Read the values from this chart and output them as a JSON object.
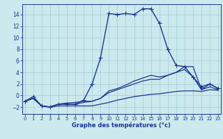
{
  "xlabel": "Graphe des températures (°c)",
  "x_ticks": [
    0,
    1,
    2,
    3,
    4,
    5,
    6,
    7,
    8,
    9,
    10,
    11,
    12,
    13,
    14,
    15,
    16,
    17,
    18,
    19,
    20,
    21,
    22,
    23
  ],
  "ylim": [
    -3.2,
    15.8
  ],
  "xlim": [
    -0.3,
    23.3
  ],
  "yticks": [
    -2,
    0,
    2,
    4,
    6,
    8,
    10,
    12,
    14
  ],
  "bg_color": "#cce9ed",
  "grid_color": "#9ecdd4",
  "line_color": "#1a3590",
  "lines": [
    {
      "x": [
        0,
        1,
        2,
        3,
        4,
        5,
        6,
        7,
        8,
        9,
        10,
        11,
        12,
        13,
        14,
        15,
        16,
        17,
        18,
        19,
        20,
        21,
        22,
        23
      ],
      "y": [
        -1.0,
        -0.5,
        -1.8,
        -2.0,
        -1.8,
        -1.8,
        -1.8,
        -1.8,
        -1.8,
        -1.5,
        -1.2,
        -0.8,
        -0.5,
        -0.2,
        0.0,
        0.2,
        0.3,
        0.5,
        0.7,
        0.8,
        0.8,
        0.7,
        1.0,
        0.9
      ],
      "marker": null,
      "lw": 0.9
    },
    {
      "x": [
        0,
        1,
        2,
        3,
        4,
        5,
        6,
        7,
        8,
        9,
        10,
        11,
        12,
        13,
        14,
        15,
        16,
        17,
        18,
        19,
        20,
        21,
        22,
        23
      ],
      "y": [
        -1.0,
        -0.5,
        -1.8,
        -2.0,
        -1.5,
        -1.5,
        -1.5,
        -1.2,
        -1.0,
        -0.5,
        0.5,
        1.0,
        1.5,
        2.0,
        2.5,
        2.8,
        2.8,
        3.5,
        4.0,
        4.5,
        3.2,
        1.0,
        1.5,
        1.0
      ],
      "marker": null,
      "lw": 0.9
    },
    {
      "x": [
        0,
        1,
        2,
        3,
        4,
        5,
        6,
        7,
        8,
        9,
        10,
        11,
        12,
        13,
        14,
        15,
        16,
        17,
        18,
        19,
        20,
        21,
        22,
        23
      ],
      "y": [
        -1.0,
        -0.5,
        -1.8,
        -2.0,
        -1.5,
        -1.3,
        -1.2,
        -1.0,
        -1.0,
        -0.5,
        0.8,
        1.2,
        1.8,
        2.5,
        3.0,
        3.5,
        3.2,
        3.5,
        4.0,
        5.0,
        5.0,
        1.0,
        2.0,
        1.2
      ],
      "marker": null,
      "lw": 0.9
    },
    {
      "x": [
        0,
        1,
        2,
        3,
        4,
        5,
        6,
        7,
        8,
        9,
        10,
        11,
        12,
        13,
        14,
        15,
        16,
        17,
        18,
        19,
        20,
        21,
        22,
        23
      ],
      "y": [
        -1.0,
        -0.2,
        -1.8,
        -2.0,
        -1.5,
        -1.5,
        -1.5,
        -0.8,
        2.0,
        6.5,
        14.2,
        14.0,
        14.2,
        14.0,
        15.0,
        15.0,
        12.5,
        8.0,
        5.2,
        5.0,
        3.2,
        1.5,
        2.0,
        1.2
      ],
      "marker": "+",
      "lw": 1.0
    }
  ]
}
